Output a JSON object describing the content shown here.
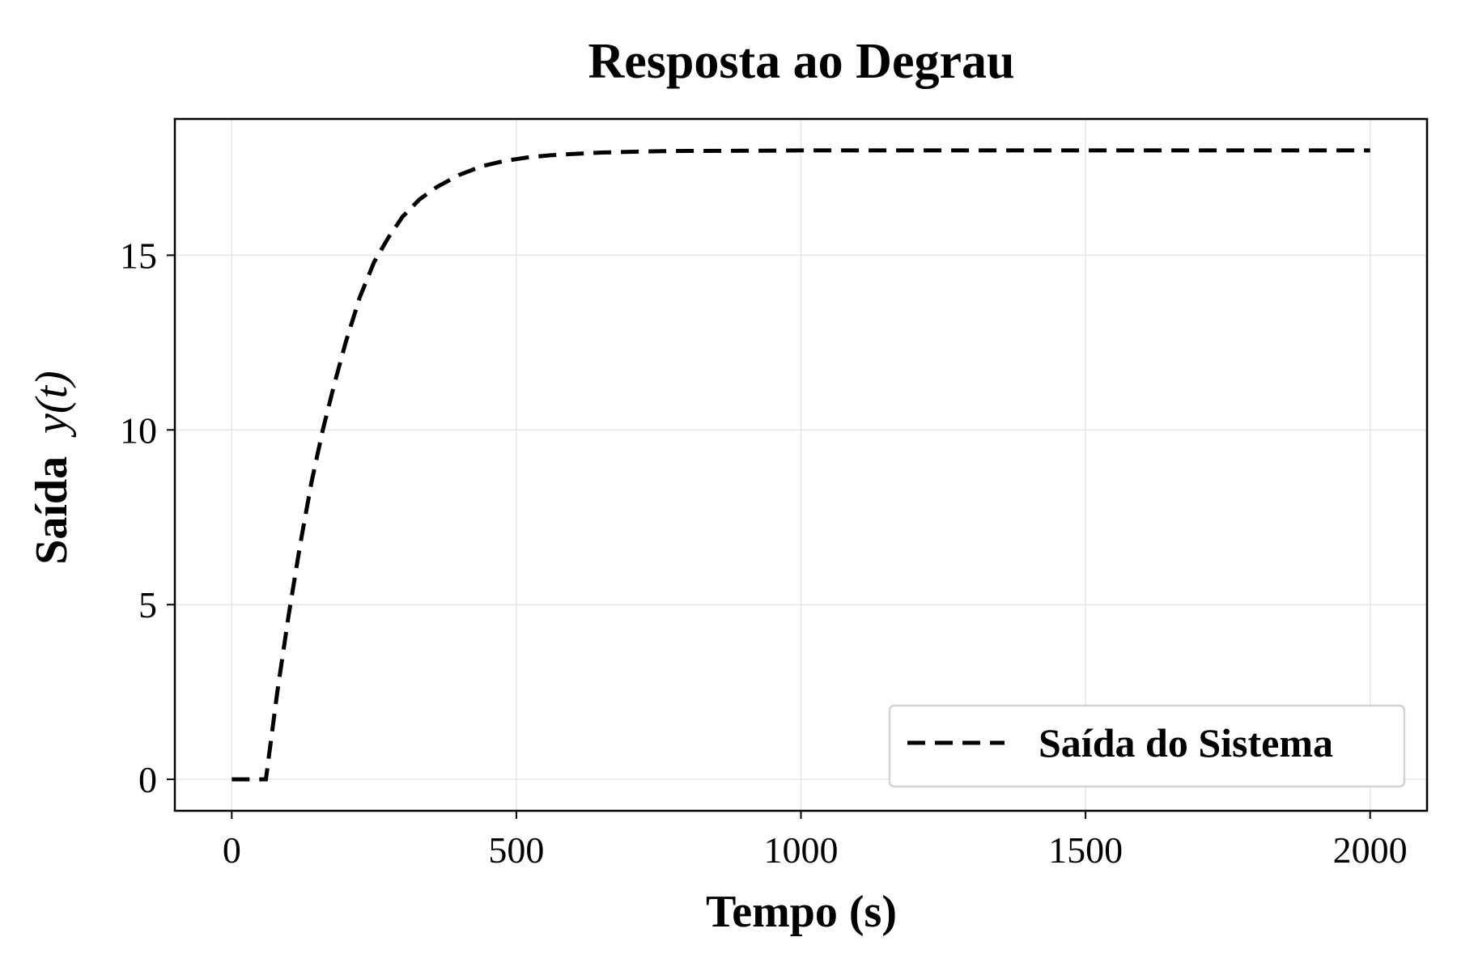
{
  "chart_data": {
    "type": "line",
    "title": "Resposta ao Degrau",
    "xlabel": "Tempo (s)",
    "ylabel_text": "Saída",
    "ylabel_math": "y(t)",
    "xlim": [
      -100,
      2100
    ],
    "ylim": [
      -0.9,
      18.9
    ],
    "xticks": [
      0,
      500,
      1000,
      1500,
      2000
    ],
    "yticks": [
      0,
      5,
      10,
      15
    ],
    "grid": true,
    "legend_position": "bottom-right",
    "series": [
      {
        "name": "Saída do Sistema",
        "line_style": "dashed",
        "color": "#000000",
        "x": [
          0,
          60,
          80,
          100,
          120,
          140,
          160,
          180,
          200,
          225,
          250,
          275,
          300,
          330,
          360,
          400,
          440,
          480,
          520,
          560,
          600,
          650,
          700,
          750,
          800,
          900,
          1000,
          1100,
          1200,
          1400,
          1600,
          1800,
          2000
        ],
        "y": [
          0,
          0,
          2.5,
          4.7,
          6.7,
          8.5,
          10.0,
          11.3,
          12.5,
          13.8,
          14.8,
          15.5,
          16.1,
          16.6,
          16.95,
          17.3,
          17.55,
          17.7,
          17.8,
          17.86,
          17.9,
          17.94,
          17.96,
          17.975,
          17.985,
          17.99,
          18.0,
          18.0,
          18.0,
          18.0,
          18.0,
          18.0,
          18.0
        ]
      }
    ]
  }
}
